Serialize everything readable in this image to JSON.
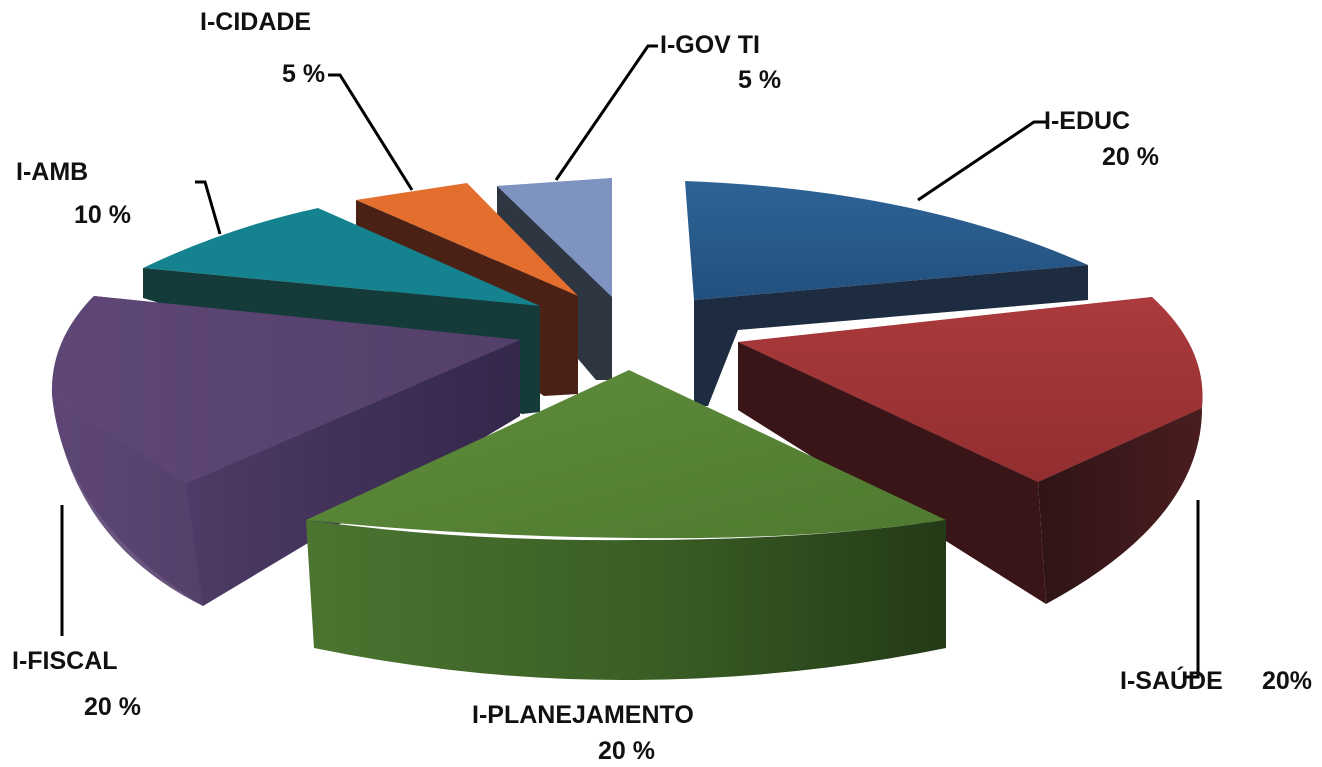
{
  "chart_data": {
    "type": "pie",
    "style": "3d-exploded",
    "title": "",
    "categories": [
      "I-EDUC",
      "I-SAÚDE",
      "I-PLANEJAMENTO",
      "I-FISCAL",
      "I-AMB",
      "I-CIDADE",
      "I-GOV TI"
    ],
    "values": [
      20,
      20,
      20,
      20,
      10,
      5,
      5
    ],
    "value_labels": [
      "20 %",
      "20%",
      "20 %",
      "20 %",
      "10 %",
      "5 %",
      "5 %"
    ],
    "colors": [
      "#2b5d8f",
      "#a3363a",
      "#5f8c3c",
      "#5a4372",
      "#14838f",
      "#e46e2e",
      "#7f93c1"
    ],
    "legend": "none"
  }
}
